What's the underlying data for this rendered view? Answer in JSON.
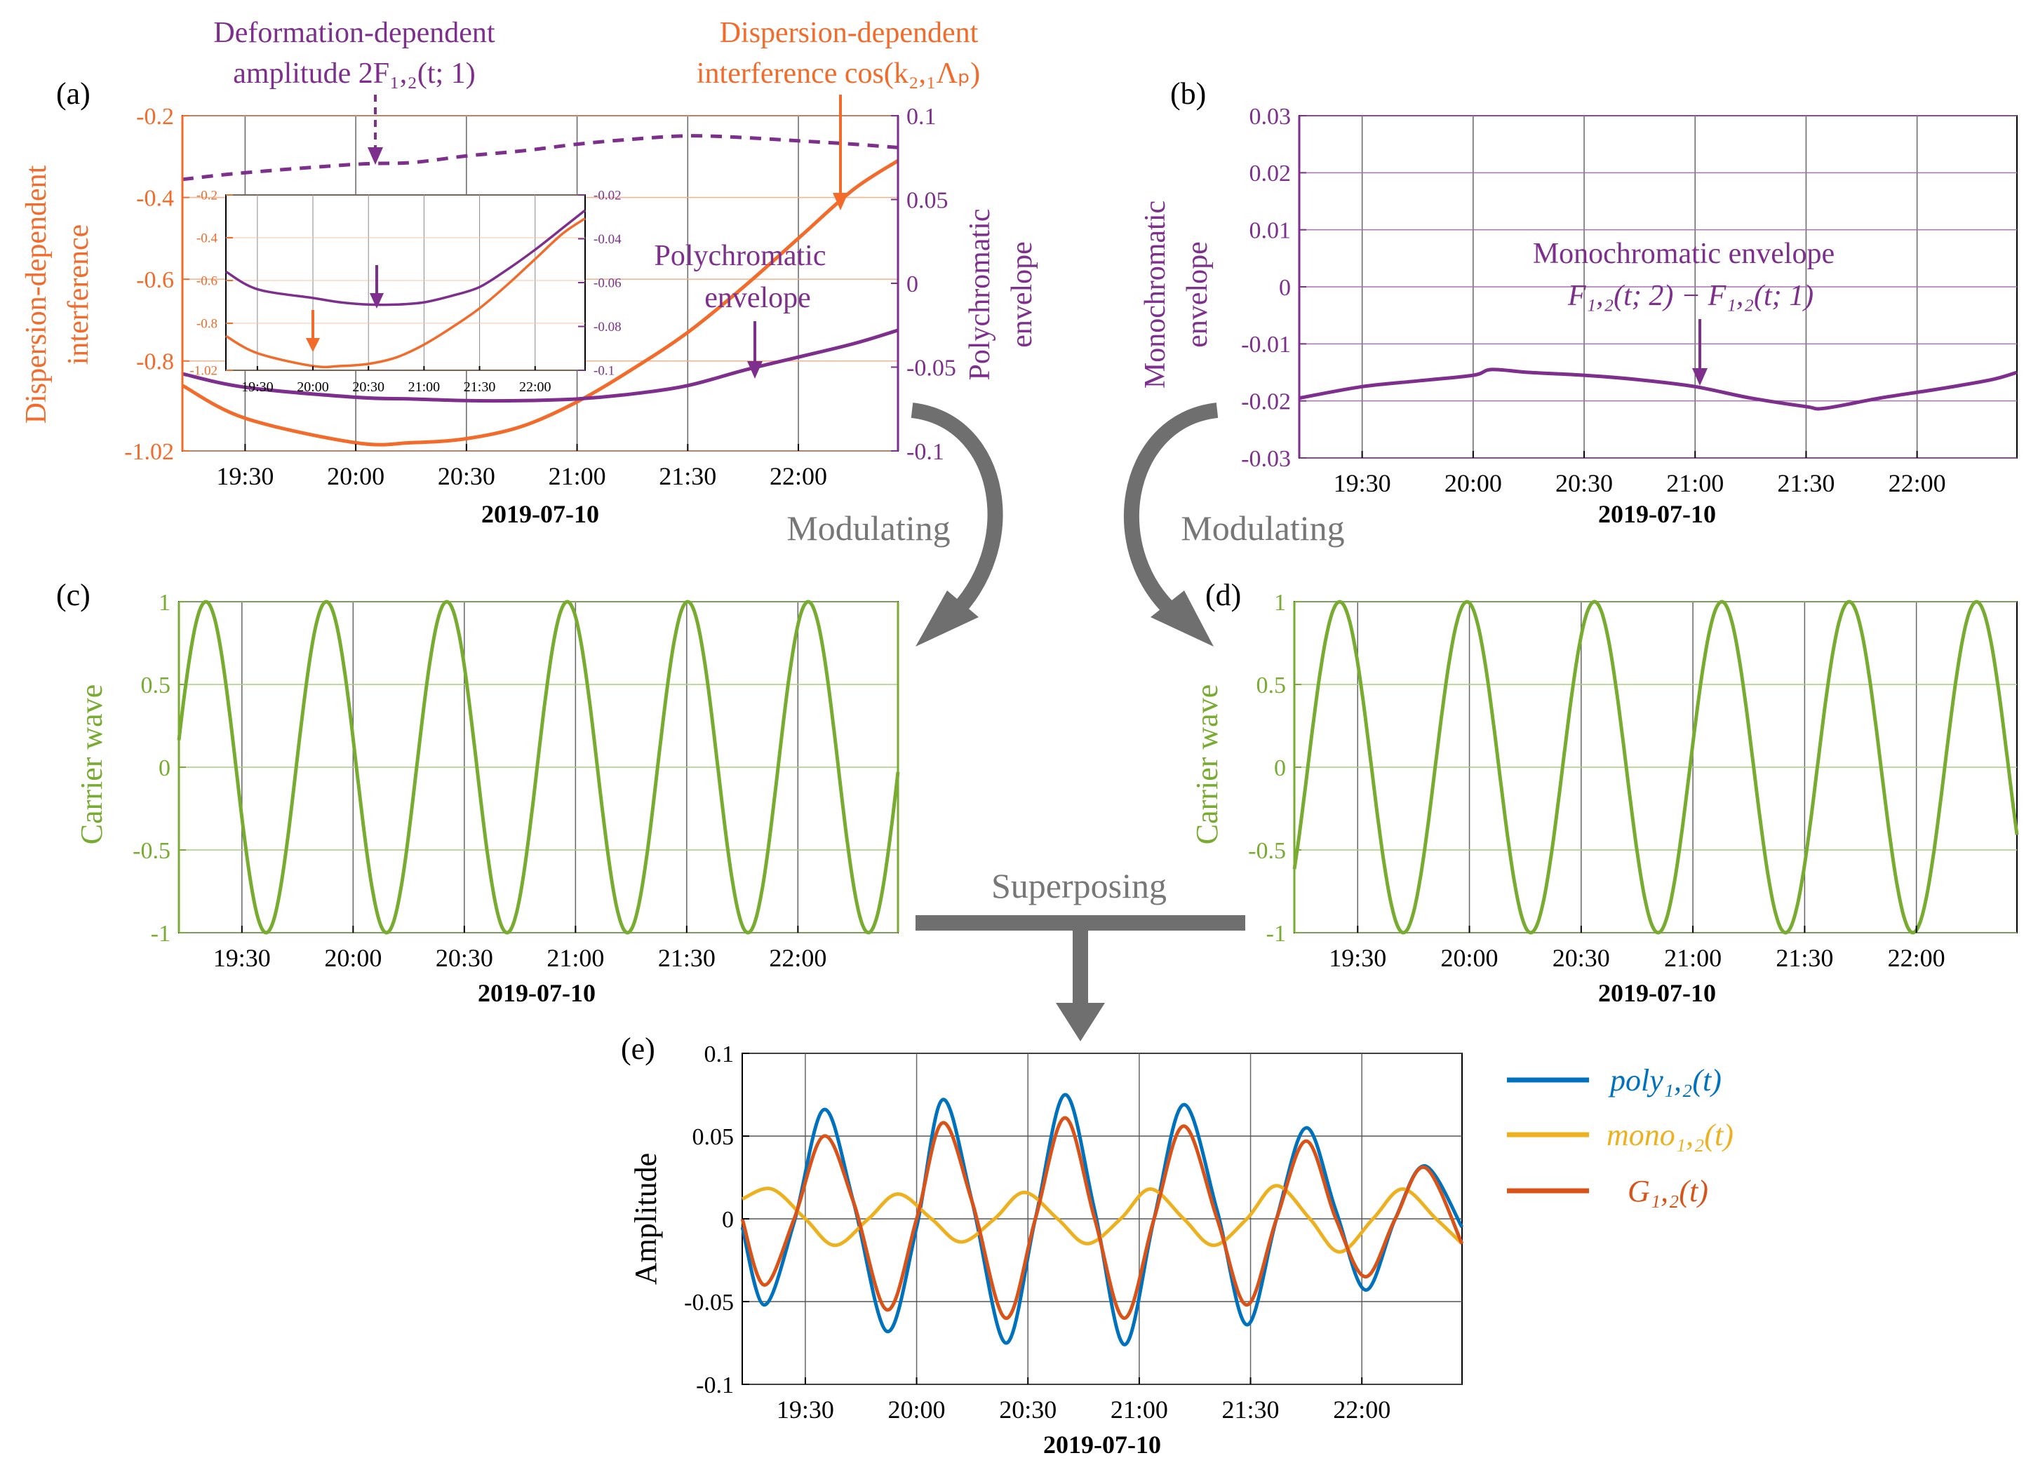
{
  "colors": {
    "orange": "#F26B2A",
    "purple": "#7E2F8E",
    "green": "#77AC30",
    "blue": "#0072BD",
    "yellow": "#EDB120",
    "red": "#D95319",
    "gray": "#777777",
    "arrow_gray": "#6f6f6f"
  },
  "common": {
    "date_label": "2019-07-10",
    "time_ticks": [
      "19:30",
      "20:00",
      "20:30",
      "21:00",
      "21:30",
      "22:00"
    ]
  },
  "connectors": {
    "modulating_left": "Modulating",
    "modulating_right": "Modulating",
    "superposing": "Superposing"
  },
  "chart_data": [
    {
      "id": "a",
      "panel_label": "(a)",
      "type": "line",
      "xlabel": "2019-07-10",
      "ylabel_left": [
        "Dispersion-dependent",
        "interference"
      ],
      "ylabel_right": [
        "Polychromatic",
        "envelope"
      ],
      "x_range": [
        "19:13",
        "22:27"
      ],
      "ylim_left": [
        -1.02,
        -0.2
      ],
      "yticks_left": [
        "-0.2",
        "-0.4",
        "-0.6",
        "-0.8",
        "-1.02"
      ],
      "ylim_right": [
        -0.1,
        0.1
      ],
      "yticks_right": [
        "0.1",
        "0.05",
        "0",
        "-0.05",
        "-0.1"
      ],
      "annotations": {
        "deformation_line1": "Deformation-dependent",
        "deformation_line2": "amplitude 2F₁,₂(t; 1)",
        "dispersion_line1": "Dispersion-dependent",
        "dispersion_line2": "interference cos(k₂,₁Λₚ)",
        "poly_line1": "Polychromatic",
        "poly_line2": "envelope"
      },
      "series": [
        {
          "name": "Dispersion-dependent interference cos(k2,1ΛP)",
          "axis": "left",
          "style": "solid",
          "color": "orange",
          "x": [
            "19:13",
            "19:30",
            "20:00",
            "20:15",
            "20:30",
            "20:45",
            "21:00",
            "21:15",
            "21:30",
            "21:45",
            "22:00",
            "22:15",
            "22:27"
          ],
          "values": [
            -0.86,
            -0.94,
            -1.0,
            -1.0,
            -0.99,
            -0.96,
            -0.9,
            -0.82,
            -0.73,
            -0.62,
            -0.5,
            -0.38,
            -0.31
          ]
        },
        {
          "name": "Polychromatic envelope",
          "axis": "right",
          "style": "solid",
          "color": "purple",
          "x": [
            "19:13",
            "19:30",
            "20:00",
            "20:15",
            "20:30",
            "20:45",
            "21:00",
            "21:15",
            "21:30",
            "21:45",
            "22:00",
            "22:15",
            "22:27"
          ],
          "values": [
            -0.054,
            -0.062,
            -0.068,
            -0.069,
            -0.07,
            -0.07,
            -0.069,
            -0.066,
            -0.061,
            -0.052,
            -0.044,
            -0.036,
            -0.028
          ]
        },
        {
          "name": "Deformation-dependent amplitude 2F1,2(t;1)",
          "axis": "right",
          "style": "dashed",
          "color": "purple",
          "x": [
            "19:13",
            "19:30",
            "20:00",
            "20:15",
            "20:30",
            "20:45",
            "21:00",
            "21:15",
            "21:30",
            "21:45",
            "22:00",
            "22:15",
            "22:27"
          ],
          "values": [
            0.062,
            0.066,
            0.071,
            0.072,
            0.076,
            0.079,
            0.083,
            0.086,
            0.088,
            0.087,
            0.085,
            0.083,
            0.081
          ]
        }
      ],
      "inset": {
        "ylim_left": [
          -1.02,
          -0.2
        ],
        "yticks_left": [
          "-0.2",
          "-0.4",
          "-0.6",
          "-0.8",
          "-1.02"
        ],
        "ylim_right": [
          -0.1,
          -0.02
        ],
        "yticks_right": [
          "-0.02",
          "-0.04",
          "-0.06",
          "-0.08",
          "-0.1"
        ],
        "xticks": [
          "19:30",
          "20:00",
          "20:30",
          "21:00",
          "21:30",
          "22:00"
        ],
        "series": [
          {
            "name": "Dispersion-dependent interference (inset)",
            "axis": "left",
            "color": "orange",
            "x": [
              "19:13",
              "19:30",
              "20:00",
              "20:15",
              "20:30",
              "20:45",
              "21:00",
              "21:15",
              "21:30",
              "21:45",
              "22:00",
              "22:15",
              "22:27"
            ],
            "values": [
              -0.86,
              -0.94,
              -1.0,
              -1.0,
              -0.99,
              -0.96,
              -0.9,
              -0.82,
              -0.73,
              -0.62,
              -0.5,
              -0.38,
              -0.31
            ]
          },
          {
            "name": "Polychromatic envelope (inset)",
            "axis": "right",
            "color": "purple",
            "x": [
              "19:13",
              "19:30",
              "20:00",
              "20:15",
              "20:30",
              "20:45",
              "21:00",
              "21:15",
              "21:30",
              "21:45",
              "22:00",
              "22:15",
              "22:27"
            ],
            "values": [
              -0.055,
              -0.063,
              -0.067,
              -0.069,
              -0.07,
              -0.07,
              -0.069,
              -0.066,
              -0.062,
              -0.054,
              -0.045,
              -0.035,
              -0.027
            ]
          }
        ]
      }
    },
    {
      "id": "b",
      "panel_label": "(b)",
      "type": "line",
      "xlabel": "2019-07-10",
      "ylabel": [
        "Monochromatic",
        "envelope"
      ],
      "x_range": [
        "19:13",
        "22:27"
      ],
      "ylim": [
        -0.03,
        0.03
      ],
      "yticks": [
        "0.03",
        "0.02",
        "0.01",
        "0",
        "-0.01",
        "-0.02",
        "-0.03"
      ],
      "annotations": {
        "line1": "Monochromatic envelope",
        "line2": "F₁,₂(t; 2) − F₁,₂(t; 1)"
      },
      "series": [
        {
          "name": "Monochromatic envelope",
          "color": "purple",
          "x": [
            "19:13",
            "19:30",
            "19:45",
            "20:00",
            "20:05",
            "20:15",
            "20:30",
            "20:45",
            "21:00",
            "21:15",
            "21:30",
            "21:35",
            "21:50",
            "22:05",
            "22:20",
            "22:27"
          ],
          "values": [
            -0.0195,
            -0.0175,
            -0.0165,
            -0.0155,
            -0.0145,
            -0.015,
            -0.0155,
            -0.0163,
            -0.0175,
            -0.0195,
            -0.021,
            -0.0213,
            -0.0195,
            -0.018,
            -0.0163,
            -0.015
          ]
        }
      ]
    },
    {
      "id": "c",
      "panel_label": "(c)",
      "type": "line",
      "xlabel": "2019-07-10",
      "ylabel": [
        "Carrier wave"
      ],
      "x_range": [
        "19:13",
        "22:27"
      ],
      "ylim": [
        -1,
        1
      ],
      "yticks": [
        "1",
        "0.5",
        "0",
        "-0.5",
        "-1"
      ],
      "series": [
        {
          "name": "Carrier wave (poly)",
          "color": "green",
          "function": "sinusoid",
          "period_minutes": 32.5,
          "phase_deg": 9.4,
          "amplitude": 1
        }
      ]
    },
    {
      "id": "d",
      "panel_label": "(d)",
      "type": "line",
      "xlabel": "2019-07-10",
      "ylabel": [
        "Carrier wave"
      ],
      "x_range": [
        "19:13",
        "22:27"
      ],
      "ylim": [
        -1,
        1
      ],
      "yticks": [
        "1",
        "0.5",
        "0",
        "-0.5",
        "-1"
      ],
      "series": [
        {
          "name": "Carrier wave (mono)",
          "color": "green",
          "function": "sinusoid",
          "period_minutes": 34.2,
          "phase_deg": -38,
          "amplitude": 1
        }
      ]
    },
    {
      "id": "e",
      "panel_label": "(e)",
      "type": "line",
      "xlabel": "2019-07-10",
      "ylabel": [
        "Amplitude"
      ],
      "x_range": [
        "19:13",
        "22:27"
      ],
      "ylim": [
        -0.1,
        0.1
      ],
      "yticks": [
        "0.1",
        "0.05",
        "0",
        "-0.05",
        "-0.1"
      ],
      "legend_position": "right",
      "series": [
        {
          "name": "poly₁,₂(t)",
          "color": "blue",
          "x": [
            "19:13",
            "19:19",
            "19:27",
            "19:35",
            "19:43",
            "19:52",
            "20:00",
            "20:07",
            "20:15",
            "20:24",
            "20:32",
            "20:40",
            "20:48",
            "20:56",
            "21:04",
            "21:12",
            "21:21",
            "21:29",
            "21:37",
            "21:45",
            "21:53",
            "22:01",
            "22:09",
            "22:17",
            "22:27"
          ],
          "values": [
            -0.005,
            -0.052,
            -0.002,
            0.066,
            0.01,
            -0.068,
            -0.005,
            0.072,
            0.01,
            -0.075,
            0.0,
            0.075,
            0.005,
            -0.076,
            0.0,
            0.069,
            0.005,
            -0.064,
            0.0,
            0.055,
            0.005,
            -0.043,
            0.0,
            0.032,
            -0.005
          ]
        },
        {
          "name": "mono₁,₂(t)",
          "color": "yellow",
          "x": [
            "19:13",
            "19:21",
            "19:30",
            "19:38",
            "19:47",
            "19:55",
            "20:04",
            "20:12",
            "20:21",
            "20:29",
            "20:38",
            "20:46",
            "20:55",
            "21:03",
            "21:12",
            "21:20",
            "21:29",
            "21:37",
            "21:46",
            "21:54",
            "22:03",
            "22:11",
            "22:20",
            "22:27"
          ],
          "values": [
            0.012,
            0.018,
            0.0,
            -0.016,
            0.0,
            0.015,
            0.0,
            -0.014,
            0.0,
            0.016,
            0.0,
            -0.015,
            0.0,
            0.018,
            0.0,
            -0.016,
            0.0,
            0.02,
            0.0,
            -0.02,
            0.0,
            0.018,
            0.0,
            -0.015
          ]
        },
        {
          "name": "G₁,₂(t)",
          "color": "red",
          "x": [
            "19:13",
            "19:19",
            "19:27",
            "19:35",
            "19:43",
            "19:52",
            "20:00",
            "20:07",
            "20:15",
            "20:24",
            "20:32",
            "20:40",
            "20:48",
            "20:56",
            "21:04",
            "21:12",
            "21:21",
            "21:29",
            "21:37",
            "21:45",
            "21:53",
            "22:01",
            "22:09",
            "22:17",
            "22:27"
          ],
          "values": [
            0.0,
            -0.04,
            0.0,
            0.05,
            0.01,
            -0.055,
            0.0,
            0.058,
            0.01,
            -0.06,
            0.0,
            0.061,
            0.0,
            -0.06,
            0.0,
            0.056,
            0.0,
            -0.052,
            0.0,
            0.047,
            0.0,
            -0.035,
            0.0,
            0.031,
            -0.015
          ]
        }
      ]
    }
  ]
}
